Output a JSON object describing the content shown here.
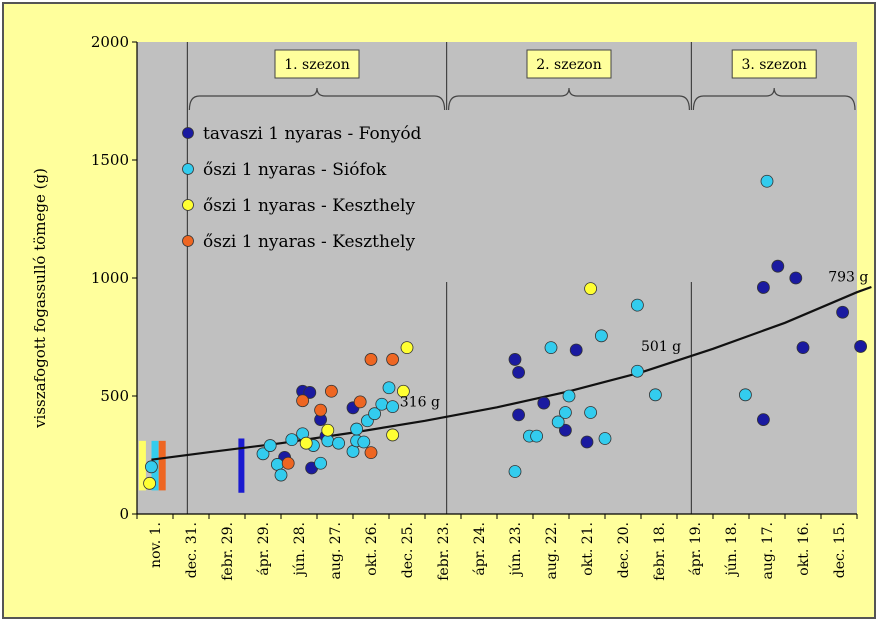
{
  "chart_data": {
    "type": "scatter",
    "ylabel": "visszafogott fogassulló tömege (g)",
    "y_ticks": [
      0,
      500,
      1000,
      1500,
      2000
    ],
    "ylim": [
      0,
      2000
    ],
    "x_ticks": [
      "nov. 1.",
      "dec. 31.",
      "febr. 29.",
      "ápr. 29.",
      "jún. 28.",
      "aug. 27.",
      "okt. 26.",
      "dec. 25.",
      "febr. 23.",
      "ápr. 24.",
      "jún. 23.",
      "aug. 22.",
      "okt. 21.",
      "dec. 20.",
      "febr. 18.",
      "ápr. 19.",
      "jún. 18.",
      "aug. 17.",
      "okt. 16.",
      "dec. 15."
    ],
    "xlim": [
      0,
      20
    ],
    "grid": false,
    "legend_position": "top-left",
    "seasons": [
      {
        "label": "1. szezon",
        "start": 1.4,
        "end": 8.6
      },
      {
        "label": "2. szezon",
        "start": 8.6,
        "end": 15.4
      },
      {
        "label": "3. szezon",
        "start": 15.4,
        "end": 20
      }
    ],
    "series": [
      {
        "name": "tavaszi 1 nyaras - Fonyód",
        "color": "#1a1aa0",
        "points": [
          [
            4.1,
            240
          ],
          [
            4.6,
            520
          ],
          [
            4.8,
            515
          ],
          [
            4.85,
            195
          ],
          [
            5.1,
            400
          ],
          [
            5.25,
            330
          ],
          [
            6.0,
            450
          ],
          [
            10.5,
            655
          ],
          [
            10.6,
            600
          ],
          [
            10.6,
            420
          ],
          [
            11.3,
            470
          ],
          [
            11.9,
            355
          ],
          [
            12.2,
            695
          ],
          [
            12.5,
            305
          ],
          [
            17.4,
            960
          ],
          [
            17.8,
            1050
          ],
          [
            18.3,
            1000
          ],
          [
            18.5,
            705
          ],
          [
            19.6,
            855
          ],
          [
            20.1,
            710
          ],
          [
            17.4,
            400
          ]
        ]
      },
      {
        "name": "őszi 1 nyaras - Siófok",
        "color": "#33ccee",
        "points": [
          [
            0.4,
            200
          ],
          [
            3.5,
            255
          ],
          [
            3.7,
            290
          ],
          [
            3.9,
            210
          ],
          [
            4.0,
            165
          ],
          [
            4.3,
            315
          ],
          [
            4.6,
            340
          ],
          [
            4.9,
            290
          ],
          [
            5.1,
            215
          ],
          [
            5.3,
            310
          ],
          [
            5.6,
            300
          ],
          [
            6.0,
            265
          ],
          [
            6.1,
            310
          ],
          [
            6.1,
            360
          ],
          [
            6.4,
            395
          ],
          [
            6.6,
            425
          ],
          [
            6.8,
            465
          ],
          [
            7.0,
            535
          ],
          [
            7.1,
            455
          ],
          [
            6.3,
            305
          ],
          [
            10.5,
            180
          ],
          [
            10.9,
            330
          ],
          [
            11.1,
            330
          ],
          [
            11.5,
            705
          ],
          [
            11.7,
            390
          ],
          [
            11.9,
            430
          ],
          [
            12.0,
            500
          ],
          [
            12.6,
            430
          ],
          [
            12.9,
            755
          ],
          [
            13.0,
            320
          ],
          [
            13.9,
            885
          ],
          [
            13.9,
            605
          ],
          [
            14.4,
            505
          ],
          [
            16.9,
            505
          ],
          [
            17.5,
            1410
          ]
        ]
      },
      {
        "name": "őszi 1 nyaras - Keszthely",
        "color": "#ffff33",
        "points": [
          [
            0.35,
            130
          ],
          [
            4.7,
            300
          ],
          [
            5.3,
            355
          ],
          [
            7.1,
            335
          ],
          [
            7.4,
            520
          ],
          [
            7.5,
            705
          ],
          [
            12.6,
            955
          ]
        ]
      },
      {
        "name": "őszi 1 nyaras - Keszthely",
        "color": "#ee6622",
        "points": [
          [
            4.2,
            215
          ],
          [
            4.6,
            480
          ],
          [
            5.1,
            440
          ],
          [
            5.4,
            520
          ],
          [
            6.2,
            475
          ],
          [
            6.5,
            260
          ],
          [
            6.5,
            655
          ],
          [
            7.1,
            655
          ]
        ]
      }
    ],
    "initial_bars": [
      {
        "color": "#ffff66",
        "x": 0.15,
        "y0": 100,
        "y1": 310
      },
      {
        "color": "#33ccee",
        "x": 0.5,
        "y0": 100,
        "y1": 310
      },
      {
        "color": "#ee6622",
        "x": 0.7,
        "y0": 100,
        "y1": 310
      }
    ],
    "stocking_bar": {
      "color": "#1a1ad0",
      "x": 2.9,
      "y0": 90,
      "y1": 320
    },
    "trend_line": [
      [
        0.4,
        230
      ],
      [
        2,
        262
      ],
      [
        4,
        300
      ],
      [
        6,
        345
      ],
      [
        8,
        395
      ],
      [
        10,
        452
      ],
      [
        12,
        520
      ],
      [
        14,
        600
      ],
      [
        16,
        700
      ],
      [
        18,
        810
      ],
      [
        20,
        940
      ],
      [
        20.4,
        962
      ]
    ],
    "annotations": [
      {
        "text": "316 g",
        "x": 7.3,
        "y": 455
      },
      {
        "text": "501 g",
        "x": 14.0,
        "y": 690
      },
      {
        "text": "793 g",
        "x": 19.2,
        "y": 985
      }
    ]
  }
}
